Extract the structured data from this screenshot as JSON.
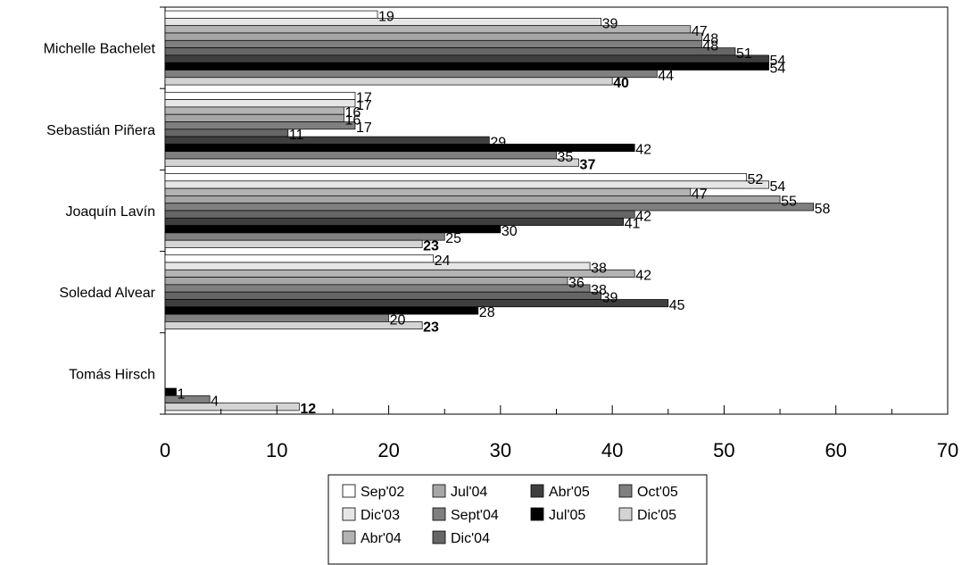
{
  "chart_data": {
    "type": "bar",
    "orientation": "horizontal",
    "title": "",
    "xlabel": "",
    "ylabel": "",
    "xlim": [
      0,
      70
    ],
    "x_ticks": [
      "0",
      "10",
      "20",
      "30",
      "40",
      "50",
      "60",
      "70"
    ],
    "categories": [
      "Michelle Bachelet",
      "Sebastián Piñera",
      "Joaquín Lavín",
      "Soledad Alvear",
      "Tomás Hirsch"
    ],
    "grid": false,
    "legend_position": "bottom",
    "legend_entries": [
      "Sep'02",
      "Jul'04",
      "Abr'05",
      "Oct'05",
      "Dic'03",
      "Sept'04",
      "Jul'05",
      "Dic'05",
      "Abr'04",
      "Dic'04"
    ],
    "series": [
      {
        "name": "Sep'02",
        "color": "#ffffff",
        "values": [
          19,
          17,
          52,
          24,
          null
        ]
      },
      {
        "name": "Dic'03",
        "color": "#e6e6e6",
        "values": [
          39,
          17,
          54,
          38,
          null
        ]
      },
      {
        "name": "Abr'04",
        "color": "#b3b3b3",
        "values": [
          47,
          16,
          47,
          42,
          null
        ]
      },
      {
        "name": "Jul'04",
        "color": "#a6a6a6",
        "values": [
          48,
          16,
          55,
          36,
          null
        ]
      },
      {
        "name": "Sept'04",
        "color": "#7f7f7f",
        "values": [
          48,
          17,
          58,
          38,
          null
        ]
      },
      {
        "name": "Dic'04",
        "color": "#666666",
        "values": [
          51,
          11,
          42,
          39,
          0
        ]
      },
      {
        "name": "Abr'05",
        "color": "#3f3f3f",
        "values": [
          54,
          29,
          41,
          45,
          null
        ]
      },
      {
        "name": "Jul'05",
        "color": "#000000",
        "values": [
          54,
          42,
          30,
          28,
          1
        ]
      },
      {
        "name": "Oct'05",
        "color": "#808080",
        "values": [
          44,
          35,
          25,
          20,
          4
        ]
      },
      {
        "name": "Dic'05",
        "color": "#d4d4d4",
        "values": [
          40,
          37,
          23,
          23,
          12
        ]
      }
    ],
    "data_labels": [
      [
        "19",
        "39",
        "47",
        "48",
        "48",
        "51",
        "54",
        "54",
        "44",
        "40"
      ],
      [
        "17",
        "17",
        "16",
        "16",
        "17",
        "11",
        "29",
        "42",
        "35",
        "37"
      ],
      [
        "52",
        "54",
        "47",
        "55",
        "58",
        "42",
        "41",
        "30",
        "25",
        "23"
      ],
      [
        "24",
        "38",
        "42",
        "36",
        "38",
        "39",
        "45",
        "28",
        "20",
        "23"
      ],
      [
        "",
        "",
        "",
        "",
        "",
        "",
        "",
        "1",
        "4",
        "12"
      ]
    ]
  }
}
